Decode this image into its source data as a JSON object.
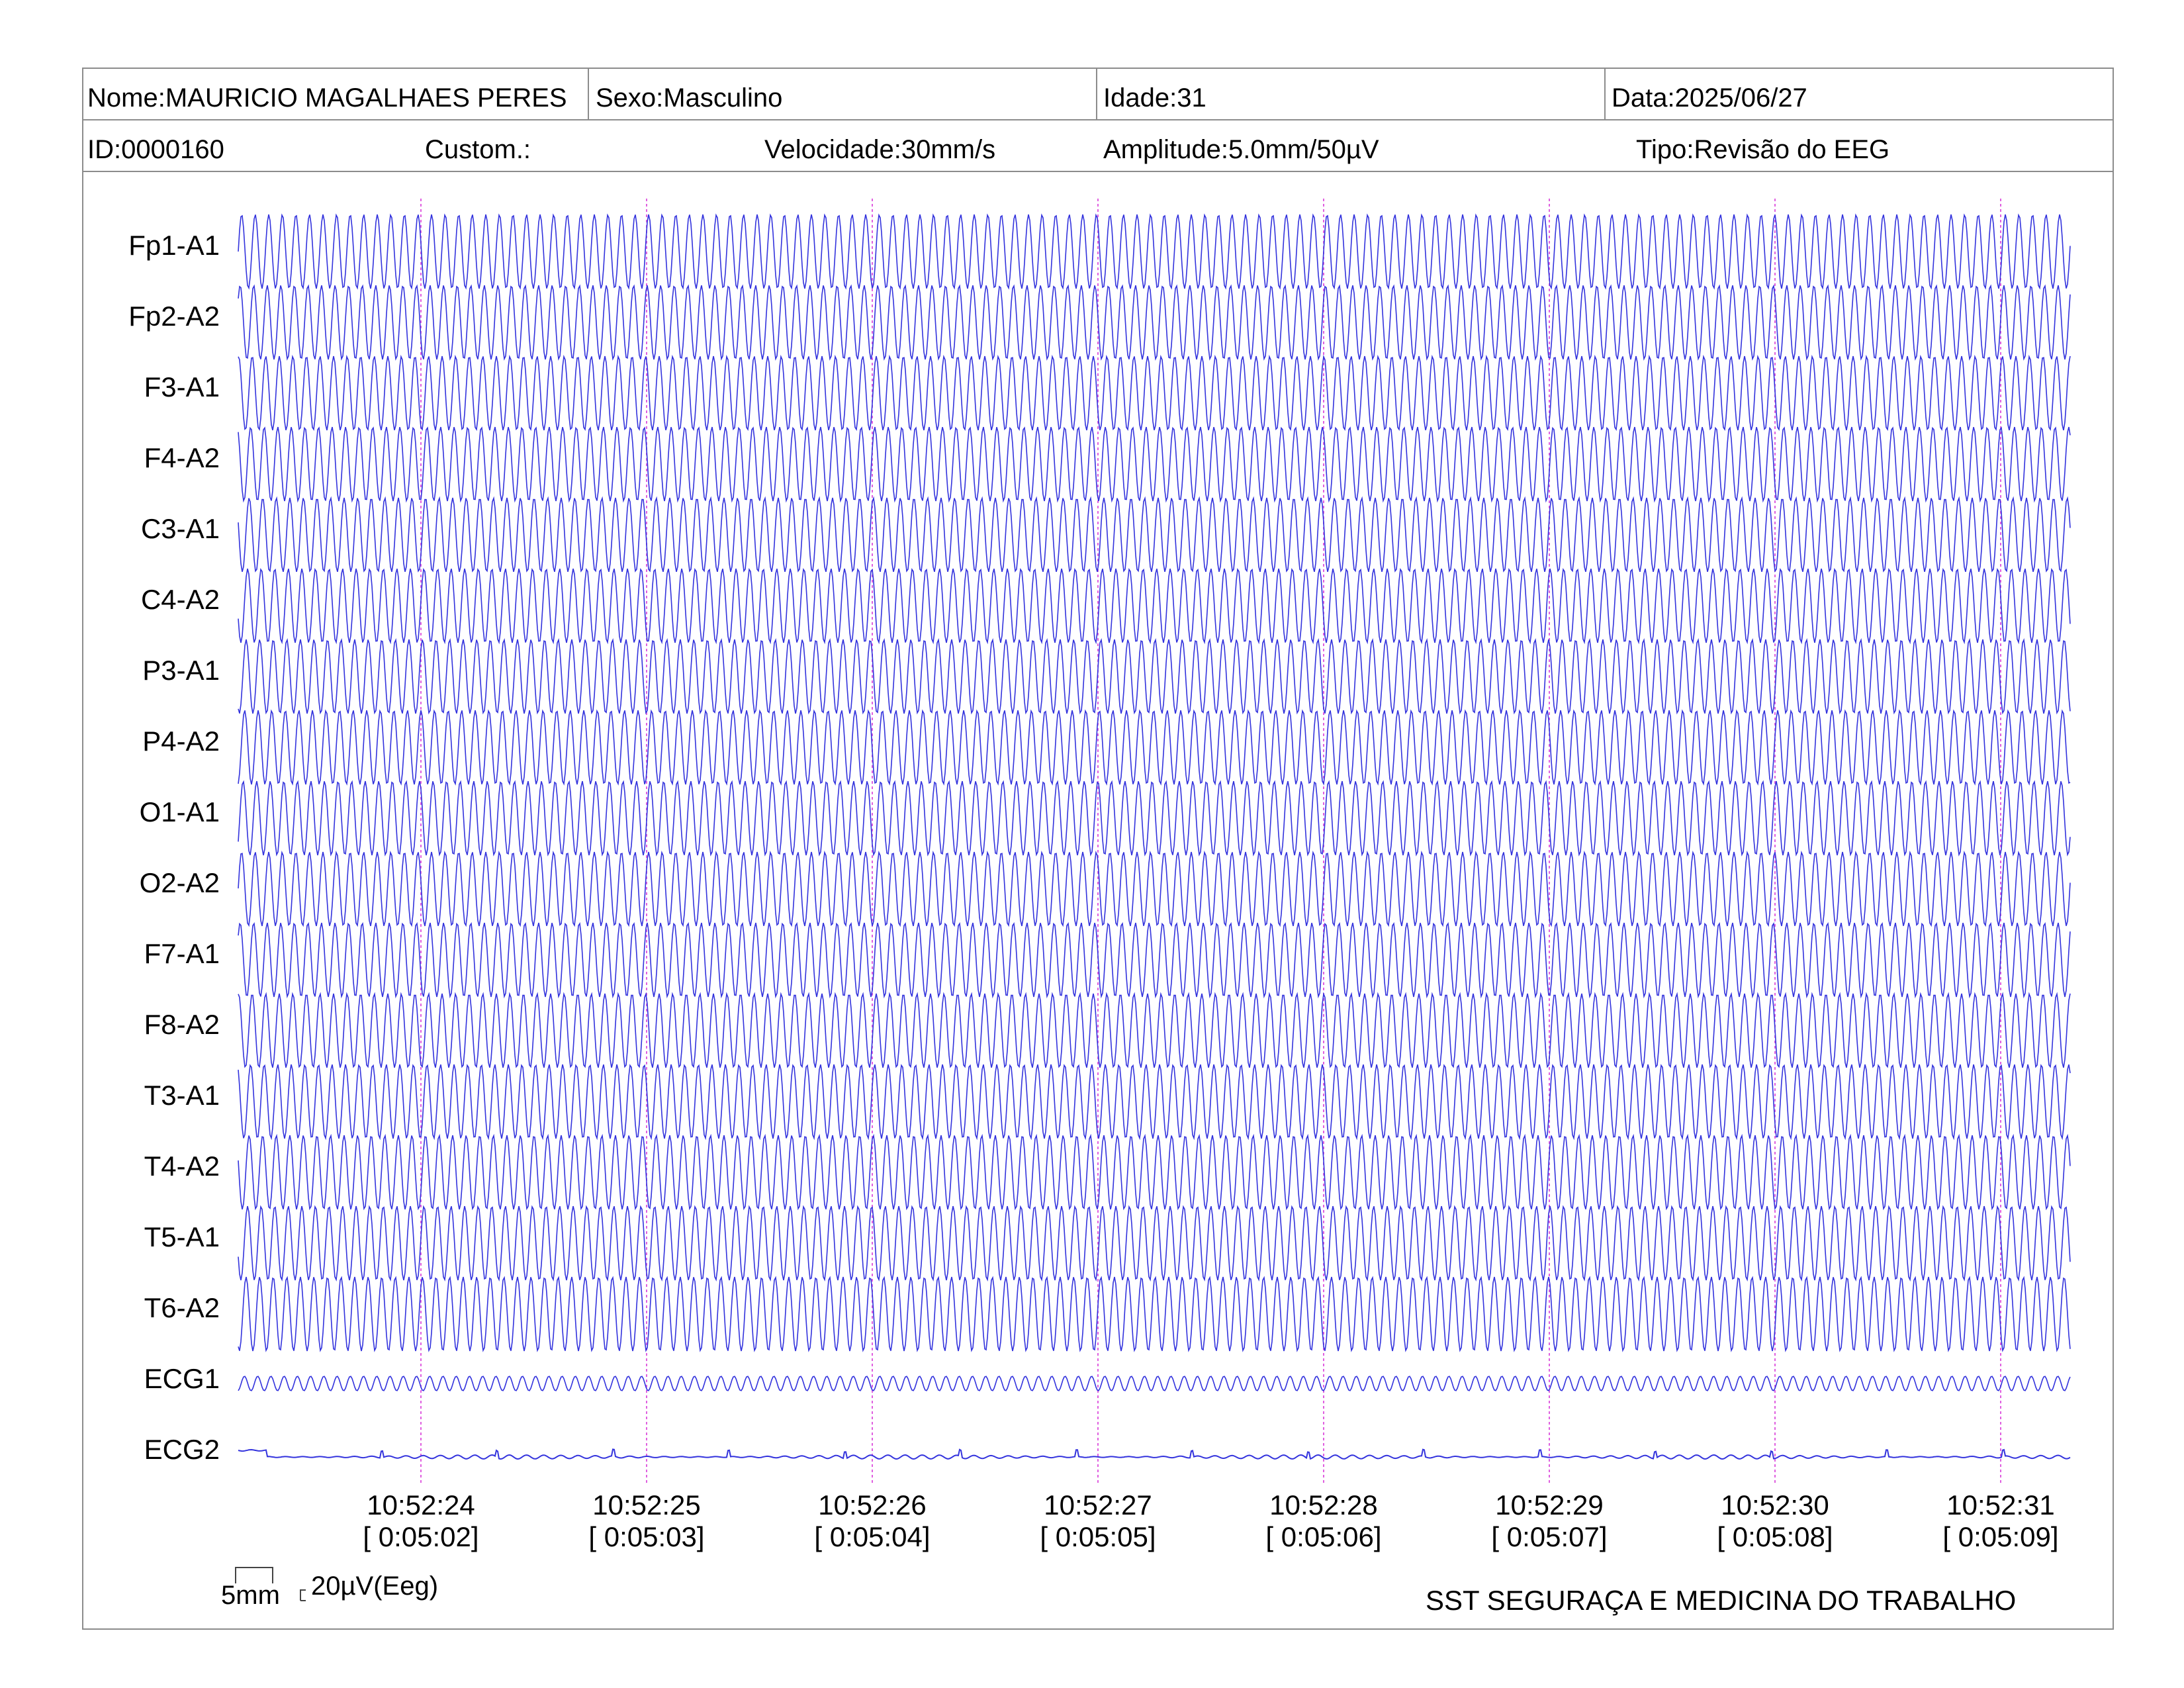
{
  "header": {
    "nome_label": "Nome:",
    "nome": "MAURICIO MAGALHAES PERES",
    "sexo_label": "Sexo:",
    "sexo": "Masculino",
    "idade_label": "Idade:",
    "idade": "31",
    "data_label": "Data:",
    "data": "2025/06/27",
    "id_label": "ID:",
    "id": "0000160",
    "custom_label": "Custom.:",
    "velocidade_label": "Velocidade:",
    "velocidade": "30mm/s",
    "amplitude_label": "Amplitude:",
    "amplitude": "5.0mm/50µV",
    "tipo_label": "Tipo:",
    "tipo": "Revisão do EEG"
  },
  "channels": [
    {
      "name": "Fp1-A1"
    },
    {
      "name": "Fp2-A2"
    },
    {
      "name": "F3-A1"
    },
    {
      "name": "F4-A2"
    },
    {
      "name": "C3-A1"
    },
    {
      "name": "C4-A2"
    },
    {
      "name": "P3-A1"
    },
    {
      "name": "P4-A2"
    },
    {
      "name": "O1-A1"
    },
    {
      "name": "O2-A2"
    },
    {
      "name": "F7-A1"
    },
    {
      "name": "F8-A2"
    },
    {
      "name": "T3-A1"
    },
    {
      "name": "T4-A2"
    },
    {
      "name": "T5-A1"
    },
    {
      "name": "T6-A2"
    },
    {
      "name": "ECG1"
    },
    {
      "name": "ECG2"
    }
  ],
  "time_markers": [
    {
      "time": "10:52:24",
      "elapsed": "[ 0:05:02]"
    },
    {
      "time": "10:52:25",
      "elapsed": "[ 0:05:03]"
    },
    {
      "time": "10:52:26",
      "elapsed": "[ 0:05:04]"
    },
    {
      "time": "10:52:27",
      "elapsed": "[ 0:05:05]"
    },
    {
      "time": "10:52:28",
      "elapsed": "[ 0:05:06]"
    },
    {
      "time": "10:52:29",
      "elapsed": "[ 0:05:07]"
    },
    {
      "time": "10:52:30",
      "elapsed": "[ 0:05:08]"
    },
    {
      "time": "10:52:31",
      "elapsed": "[ 0:05:09]"
    }
  ],
  "scale": {
    "time_scale": "5mm",
    "amp_scale": "20µV(Eeg)"
  },
  "footer": {
    "organization": "SST SEGURAÇA E MEDICINA DO TRABALHO"
  },
  "colors": {
    "trace": "#3333dd",
    "marker": "#e060e0",
    "grid": "#8c8c8c"
  }
}
